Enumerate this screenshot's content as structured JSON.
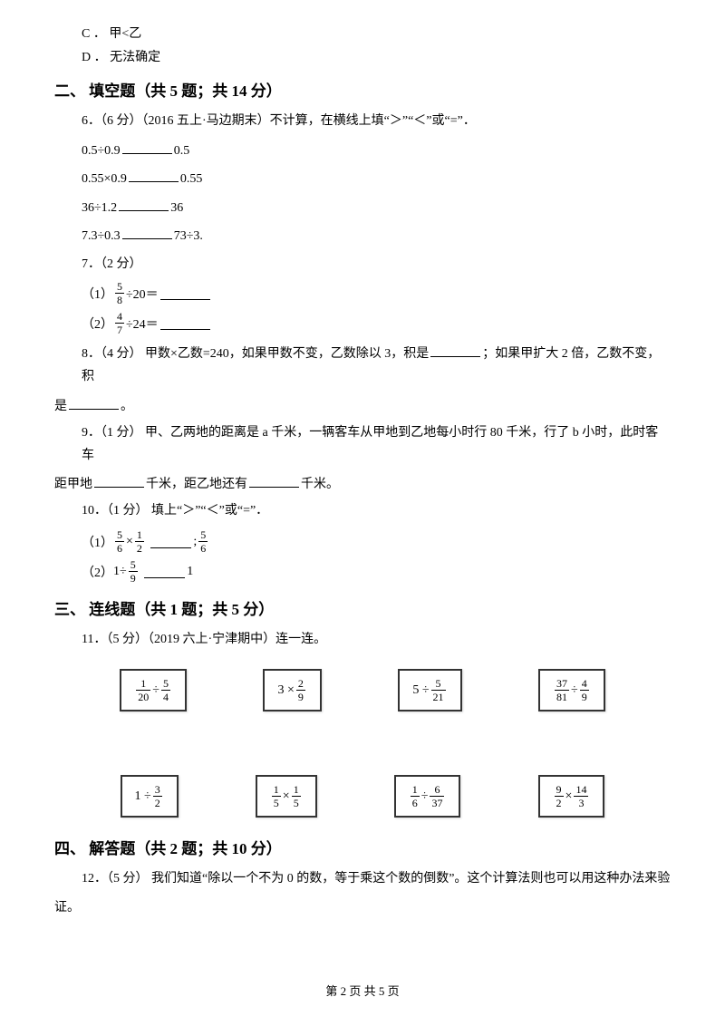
{
  "options": {
    "c": "C ． 甲<乙",
    "d": "D ． 无法确定"
  },
  "section2": {
    "title": "二、 填空题（共 5 题；共 14 分）",
    "q6": {
      "stem": "6．（6 分）（2016 五上·马边期末）不计算，在横线上填“＞”“＜”或“=”．",
      "lines": {
        "l1a": "0.5÷0.9",
        "l1b": "0.5",
        "l2a": "0.55×0.9",
        "l2b": "0.55",
        "l3a": "36÷1.2",
        "l3b": "36",
        "l4a": "7.3÷0.3",
        "l4b": "73÷3."
      }
    },
    "q7": {
      "stem": "7．（2 分）",
      "s1_label": "（1）",
      "s1_frac_num": "5",
      "s1_frac_den": "8",
      "s1_op": " ÷20＝",
      "s2_label": "（2）",
      "s2_frac_num": "4",
      "s2_frac_den": "7",
      "s2_op": " ÷24＝"
    },
    "q8": {
      "p1": "8．（4 分） 甲数×乙数=240，如果甲数不变，乙数除以 3，积是",
      "p2": "；如果甲扩大 2 倍，乙数不变，积",
      "cont": "是",
      "p3": "。"
    },
    "q9": {
      "p1": "9．（1 分） 甲、乙两地的距离是 a 千米，一辆客车从甲地到乙地每小时行 80 千米，行了 b 小时，此时客车",
      "cont1": "距甲地",
      "cont2": "千米，距乙地还有",
      "cont3": "千米。"
    },
    "q10": {
      "stem": "10．（1 分） 填上“＞”“＜”或“=”．",
      "s1_label": "（1）",
      "s1_f1_num": "5",
      "s1_f1_den": "6",
      "s1_op1": "×",
      "s1_f2_num": "1",
      "s1_f2_den": "2",
      "s1_sep": ";",
      "s1_f3_num": "5",
      "s1_f3_den": "6",
      "s2_label": "（2）",
      "s2_p1": "1÷",
      "s2_f1_num": "5",
      "s2_f1_den": "9",
      "s2_end": "1"
    }
  },
  "section3": {
    "title": "三、 连线题（共 1 题；共 5 分）",
    "q11": "11．（5 分）（2019 六上·宁津期中）连一连。",
    "row1": [
      {
        "type": "frac_op_frac",
        "n1": "1",
        "d1": "20",
        "op": "÷",
        "n2": "5",
        "d2": "4"
      },
      {
        "type": "num_op_frac",
        "num": "3",
        "op": "×",
        "n2": "2",
        "d2": "9"
      },
      {
        "type": "num_op_frac",
        "num": "5",
        "op": "÷",
        "n2": "5",
        "d2": "21"
      },
      {
        "type": "frac_op_frac",
        "n1": "37",
        "d1": "81",
        "op": "÷",
        "n2": "4",
        "d2": "9"
      }
    ],
    "row2": [
      {
        "type": "num_op_frac",
        "num": "1",
        "op": "÷",
        "n2": "3",
        "d2": "2"
      },
      {
        "type": "frac_op_frac",
        "n1": "1",
        "d1": "5",
        "op": "×",
        "n2": "1",
        "d2": "5"
      },
      {
        "type": "frac_op_frac",
        "n1": "1",
        "d1": "6",
        "op": "÷",
        "n2": "6",
        "d2": "37"
      },
      {
        "type": "frac_op_frac",
        "n1": "9",
        "d1": "2",
        "op": "×",
        "n2": "14",
        "d2": "3"
      }
    ]
  },
  "section4": {
    "title": "四、 解答题（共 2 题；共 10 分）",
    "q12": {
      "p1": "12．（5 分） 我们知道“除以一个不为 0 的数，等于乘这个数的倒数”。这个计算法则也可以用这种办法来验",
      "cont": "证。"
    }
  },
  "footer": "第 2 页 共 5 页"
}
